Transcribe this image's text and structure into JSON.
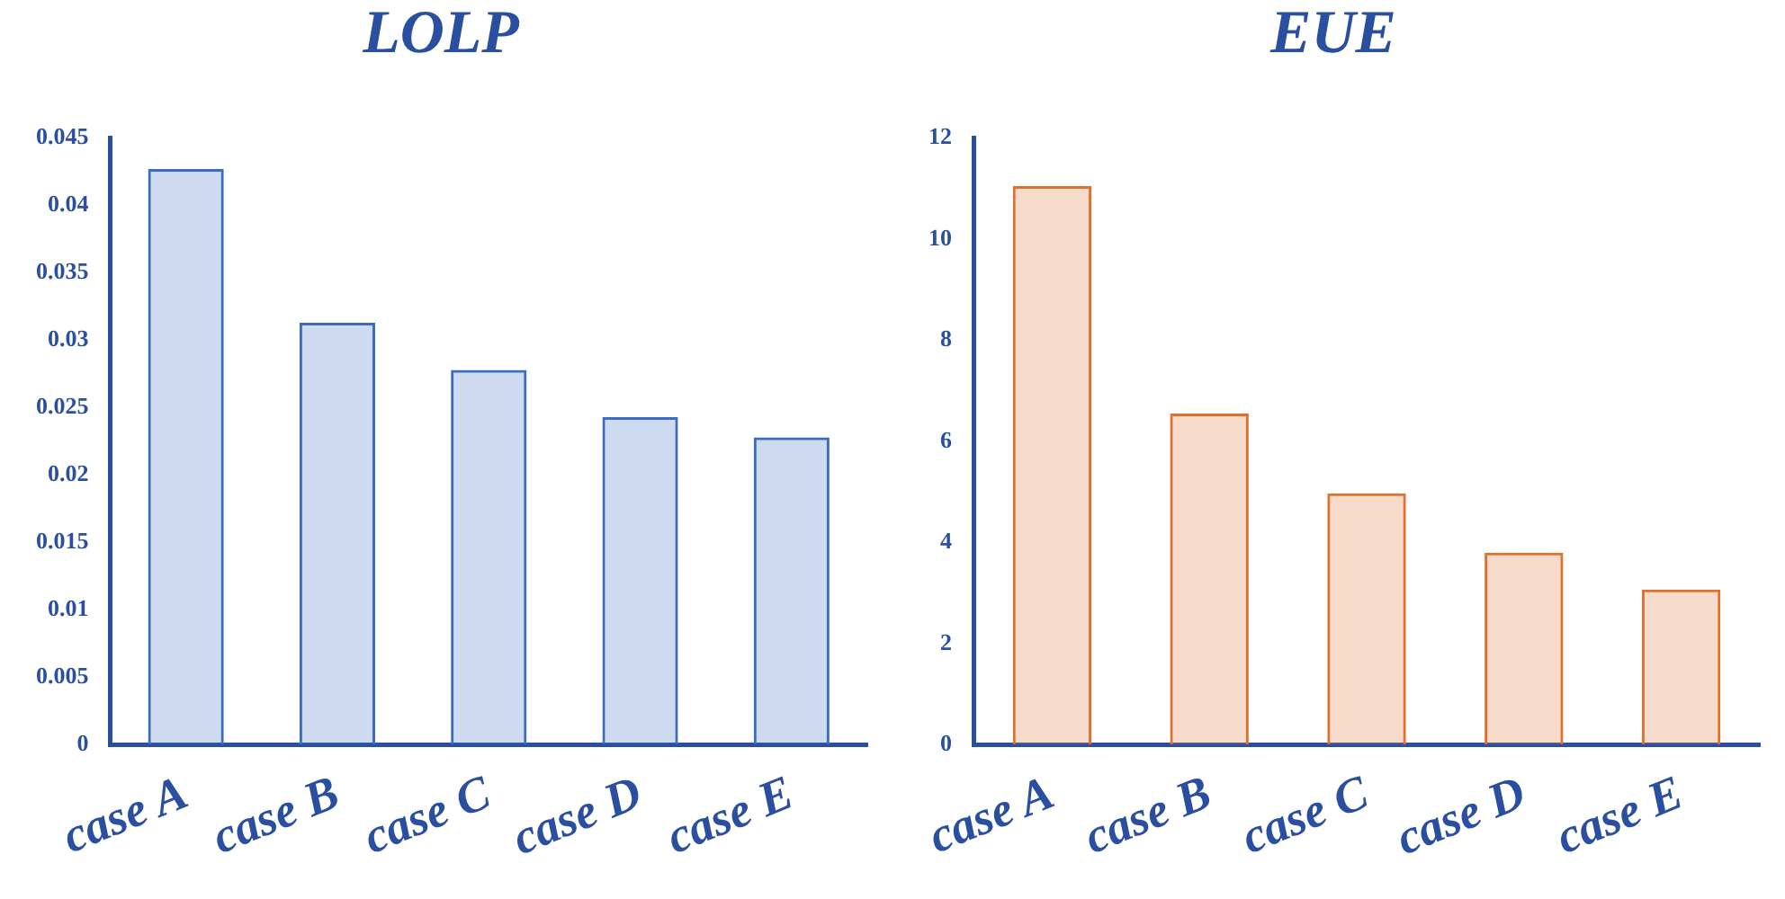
{
  "chart_data": [
    {
      "type": "bar",
      "title": "LOLP",
      "categories": [
        "case A",
        "case B",
        "case C",
        "case D",
        "case E"
      ],
      "values": [
        0.0427,
        0.0313,
        0.0278,
        0.0243,
        0.0228
      ],
      "color": "#3b6cc4",
      "ylim": [
        0,
        0.045
      ],
      "yticks": [
        0,
        0.005,
        0.01,
        0.015,
        0.02,
        0.025,
        0.03,
        0.035,
        0.04,
        0.045
      ],
      "grid": false
    },
    {
      "type": "bar",
      "title": "EUE",
      "categories": [
        "case A",
        "case B",
        "case C",
        "case D",
        "case E"
      ],
      "values": [
        11.05,
        6.55,
        4.97,
        3.8,
        3.07
      ],
      "color": "#e0702c",
      "ylim": [
        0,
        12
      ],
      "yticks": [
        0,
        2,
        4,
        6,
        8,
        10,
        12
      ],
      "grid": false
    }
  ]
}
